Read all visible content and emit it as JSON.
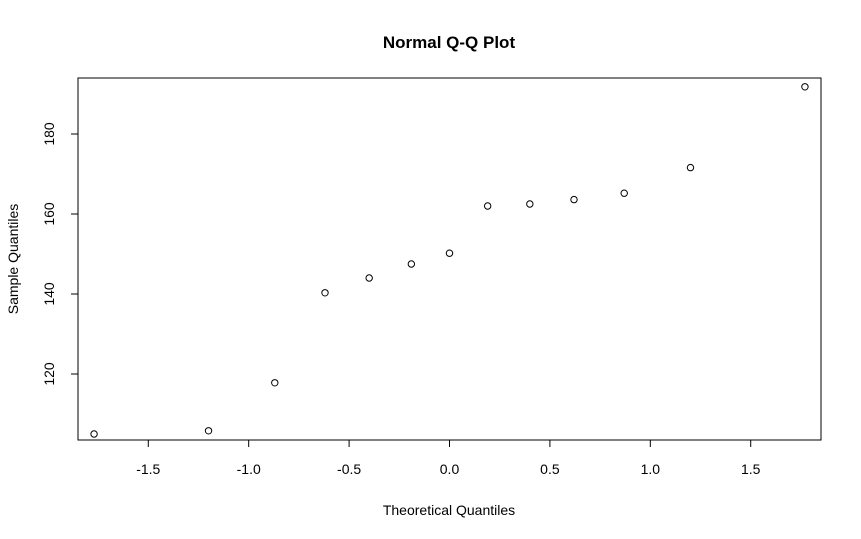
{
  "chart_data": {
    "type": "scatter",
    "title": "Normal Q-Q Plot",
    "xlabel": "Theoretical Quantiles",
    "ylabel": "Sample Quantiles",
    "xlim": [
      -1.85,
      1.85
    ],
    "ylim": [
      103.5,
      194
    ],
    "x_ticks": [
      -1.5,
      -1.0,
      -0.5,
      0.0,
      0.5,
      1.0,
      1.5
    ],
    "x_tick_labels": [
      "-1.5",
      "-1.0",
      "-0.5",
      "0.0",
      "0.5",
      "1.0",
      "1.5"
    ],
    "y_ticks": [
      120,
      140,
      160,
      180
    ],
    "y_tick_labels": [
      "120",
      "140",
      "160",
      "180"
    ],
    "grid": false,
    "points": [
      {
        "x": -1.77,
        "y": 105.0
      },
      {
        "x": -1.2,
        "y": 105.8
      },
      {
        "x": -0.87,
        "y": 117.8
      },
      {
        "x": -0.62,
        "y": 140.3
      },
      {
        "x": -0.4,
        "y": 144.0
      },
      {
        "x": -0.19,
        "y": 147.5
      },
      {
        "x": 0.0,
        "y": 150.2
      },
      {
        "x": 0.19,
        "y": 162.0
      },
      {
        "x": 0.4,
        "y": 162.5
      },
      {
        "x": 0.62,
        "y": 163.6
      },
      {
        "x": 0.87,
        "y": 165.2
      },
      {
        "x": 1.2,
        "y": 171.6
      },
      {
        "x": 1.77,
        "y": 191.8
      }
    ]
  }
}
